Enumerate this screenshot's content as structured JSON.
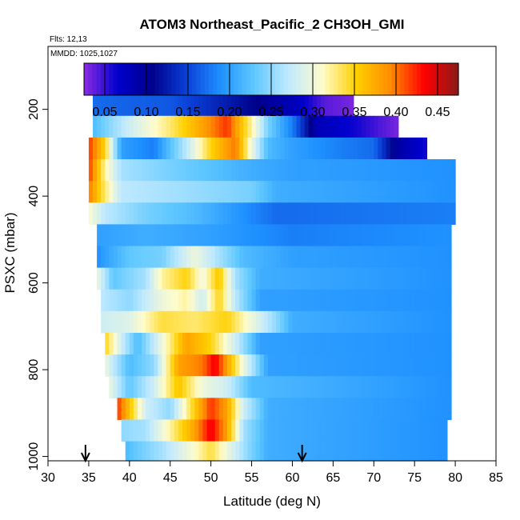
{
  "chart_data": {
    "type": "heatmap",
    "title": "ATOM3 Northeast_Pacific_2 CH3OH_GMI",
    "flights_note": "Flts: 12,13",
    "dates_note": "MMDD: 1025,1027",
    "xlabel": "Latitude (deg N)",
    "ylabel": "PSXC (mbar)",
    "xlim": [
      30,
      85
    ],
    "ylim": [
      1010,
      55
    ],
    "y_reversed": true,
    "x_ticks": [
      30,
      35,
      40,
      45,
      50,
      55,
      60,
      65,
      70,
      75,
      80,
      85
    ],
    "y_ticks": [
      200,
      400,
      600,
      800,
      1000
    ],
    "colorbar": {
      "min": 0.025,
      "max": 0.475,
      "tick_values": [
        0.05,
        0.1,
        0.15,
        0.2,
        0.25,
        0.3,
        0.35,
        0.4,
        0.45
      ],
      "tick_labels": [
        "0.05",
        "0.10",
        "0.15",
        "0.20",
        "0.25",
        "0.30",
        "0.35",
        "0.40",
        "0.45"
      ],
      "colors": [
        "#8a2be2",
        "#0000cd",
        "#00008b",
        "#0a3fd6",
        "#1e90ff",
        "#5fc8ff",
        "#bfe9ff",
        "#fffccc",
        "#ffd000",
        "#ff8c00",
        "#ff0000",
        "#8b1a1a"
      ]
    },
    "arrows_latitude": [
      34.6,
      61.2
    ],
    "bands": [
      {
        "p_top": 165,
        "p_bot": 215,
        "x_start": 35.5,
        "x_end": 67.5,
        "knots": [
          [
            35.5,
            0.17
          ],
          [
            45,
            0.16
          ],
          [
            55,
            0.11
          ],
          [
            60,
            0.08
          ],
          [
            64,
            0.04
          ],
          [
            67.5,
            0.03
          ]
        ]
      },
      {
        "p_top": 215,
        "p_bot": 265,
        "x_start": 35.5,
        "x_end": 73,
        "knots": [
          [
            35.5,
            0.22
          ],
          [
            40,
            0.28
          ],
          [
            45,
            0.33
          ],
          [
            49,
            0.38
          ],
          [
            52,
            0.42
          ],
          [
            55,
            0.32
          ],
          [
            57,
            0.24
          ],
          [
            60,
            0.18
          ],
          [
            63,
            0.08
          ],
          [
            68,
            0.06
          ],
          [
            73,
            0.03
          ]
        ]
      },
      {
        "p_top": 265,
        "p_bot": 315,
        "x_start": 35,
        "x_end": 76.5,
        "knots": [
          [
            35,
            0.42
          ],
          [
            37,
            0.35
          ],
          [
            39,
            0.2
          ],
          [
            43,
            0.18
          ],
          [
            47,
            0.27
          ],
          [
            50,
            0.35
          ],
          [
            53,
            0.4
          ],
          [
            55,
            0.3
          ],
          [
            57,
            0.22
          ],
          [
            60,
            0.2
          ],
          [
            66,
            0.18
          ],
          [
            70,
            0.17
          ],
          [
            73,
            0.09
          ],
          [
            76.5,
            0.06
          ]
        ]
      },
      {
        "p_top": 315,
        "p_bot": 365,
        "x_start": 35,
        "x_end": 80,
        "knots": [
          [
            35,
            0.42
          ],
          [
            37,
            0.32
          ],
          [
            39,
            0.26
          ],
          [
            45,
            0.24
          ],
          [
            55,
            0.21
          ],
          [
            60,
            0.2
          ],
          [
            80,
            0.19
          ]
        ]
      },
      {
        "p_top": 365,
        "p_bot": 415,
        "x_start": 35,
        "x_end": 80,
        "knots": [
          [
            35,
            0.4
          ],
          [
            37,
            0.33
          ],
          [
            39,
            0.27
          ],
          [
            45,
            0.26
          ],
          [
            55,
            0.24
          ],
          [
            58,
            0.21
          ],
          [
            80,
            0.19
          ]
        ]
      },
      {
        "p_top": 415,
        "p_bot": 465,
        "x_start": 35,
        "x_end": 80,
        "knots": [
          [
            35,
            0.31
          ],
          [
            37,
            0.27
          ],
          [
            42,
            0.24
          ],
          [
            48,
            0.22
          ],
          [
            52,
            0.2
          ],
          [
            58,
            0.17
          ],
          [
            80,
            0.18
          ]
        ]
      },
      {
        "p_top": 465,
        "p_bot": 515,
        "x_start": 36,
        "x_end": 79.5,
        "knots": [
          [
            36,
            0.2
          ],
          [
            42,
            0.21
          ],
          [
            50,
            0.2
          ],
          [
            55,
            0.19
          ],
          [
            60,
            0.18
          ],
          [
            79.5,
            0.19
          ]
        ]
      },
      {
        "p_top": 515,
        "p_bot": 565,
        "x_start": 36,
        "x_end": 79.5,
        "knots": [
          [
            36,
            0.19
          ],
          [
            40,
            0.23
          ],
          [
            44,
            0.24
          ],
          [
            48,
            0.3
          ],
          [
            51,
            0.26
          ],
          [
            54,
            0.22
          ],
          [
            60,
            0.2
          ],
          [
            79.5,
            0.19
          ]
        ]
      },
      {
        "p_top": 565,
        "p_bot": 615,
        "x_start": 36,
        "x_end": 79.5,
        "knots": [
          [
            36,
            0.3
          ],
          [
            38,
            0.23
          ],
          [
            42,
            0.26
          ],
          [
            44,
            0.32
          ],
          [
            47,
            0.35
          ],
          [
            49,
            0.3
          ],
          [
            51,
            0.36
          ],
          [
            53,
            0.26
          ],
          [
            56,
            0.21
          ],
          [
            79.5,
            0.19
          ]
        ]
      },
      {
        "p_top": 615,
        "p_bot": 665,
        "x_start": 36.5,
        "x_end": 79.5,
        "knots": [
          [
            36.5,
            0.27
          ],
          [
            40,
            0.25
          ],
          [
            44,
            0.3
          ],
          [
            47,
            0.32
          ],
          [
            49,
            0.28
          ],
          [
            51,
            0.35
          ],
          [
            53,
            0.27
          ],
          [
            56,
            0.2
          ],
          [
            79.5,
            0.19
          ]
        ]
      },
      {
        "p_top": 665,
        "p_bot": 715,
        "x_start": 36.5,
        "x_end": 79.5,
        "knots": [
          [
            36.5,
            0.28
          ],
          [
            40,
            0.29
          ],
          [
            44,
            0.34
          ],
          [
            48,
            0.33
          ],
          [
            52,
            0.35
          ],
          [
            55,
            0.3
          ],
          [
            58,
            0.25
          ],
          [
            60,
            0.21
          ],
          [
            79.5,
            0.19
          ]
        ]
      },
      {
        "p_top": 715,
        "p_bot": 765,
        "x_start": 37,
        "x_end": 79.5,
        "knots": [
          [
            37,
            0.35
          ],
          [
            39,
            0.28
          ],
          [
            41,
            0.22
          ],
          [
            44,
            0.3
          ],
          [
            47,
            0.38
          ],
          [
            50,
            0.35
          ],
          [
            53,
            0.28
          ],
          [
            56,
            0.2
          ],
          [
            79.5,
            0.19
          ]
        ]
      },
      {
        "p_top": 765,
        "p_bot": 815,
        "x_start": 37,
        "x_end": 79.5,
        "knots": [
          [
            37,
            0.3
          ],
          [
            40,
            0.22
          ],
          [
            43,
            0.25
          ],
          [
            46,
            0.38
          ],
          [
            49,
            0.4
          ],
          [
            50.5,
            0.44
          ],
          [
            52,
            0.38
          ],
          [
            54,
            0.3
          ],
          [
            57,
            0.2
          ],
          [
            79.5,
            0.19
          ]
        ]
      },
      {
        "p_top": 815,
        "p_bot": 865,
        "x_start": 37.5,
        "x_end": 79.5,
        "knots": [
          [
            37.5,
            0.3
          ],
          [
            40,
            0.23
          ],
          [
            43,
            0.28
          ],
          [
            46,
            0.36
          ],
          [
            49,
            0.3
          ],
          [
            52,
            0.28
          ],
          [
            55,
            0.22
          ],
          [
            79.5,
            0.19
          ]
        ]
      },
      {
        "p_top": 865,
        "p_bot": 915,
        "x_start": 38.5,
        "x_end": 79.5,
        "knots": [
          [
            38.5,
            0.42
          ],
          [
            40,
            0.36
          ],
          [
            42,
            0.28
          ],
          [
            45,
            0.25
          ],
          [
            47,
            0.32
          ],
          [
            50,
            0.42
          ],
          [
            52,
            0.38
          ],
          [
            54,
            0.28
          ],
          [
            57,
            0.21
          ],
          [
            79.5,
            0.19
          ]
        ]
      },
      {
        "p_top": 915,
        "p_bot": 965,
        "x_start": 39,
        "x_end": 79,
        "knots": [
          [
            39,
            0.25
          ],
          [
            42,
            0.26
          ],
          [
            45,
            0.32
          ],
          [
            48,
            0.38
          ],
          [
            50,
            0.44
          ],
          [
            52,
            0.38
          ],
          [
            54,
            0.26
          ],
          [
            57,
            0.21
          ],
          [
            79,
            0.19
          ]
        ]
      },
      {
        "p_top": 965,
        "p_bot": 1010,
        "x_start": 39.5,
        "x_end": 79,
        "knots": [
          [
            39.5,
            0.22
          ],
          [
            44,
            0.26
          ],
          [
            48,
            0.31
          ],
          [
            50,
            0.34
          ],
          [
            52,
            0.3
          ],
          [
            55,
            0.24
          ],
          [
            57,
            0.21
          ],
          [
            79,
            0.19
          ]
        ]
      }
    ]
  }
}
